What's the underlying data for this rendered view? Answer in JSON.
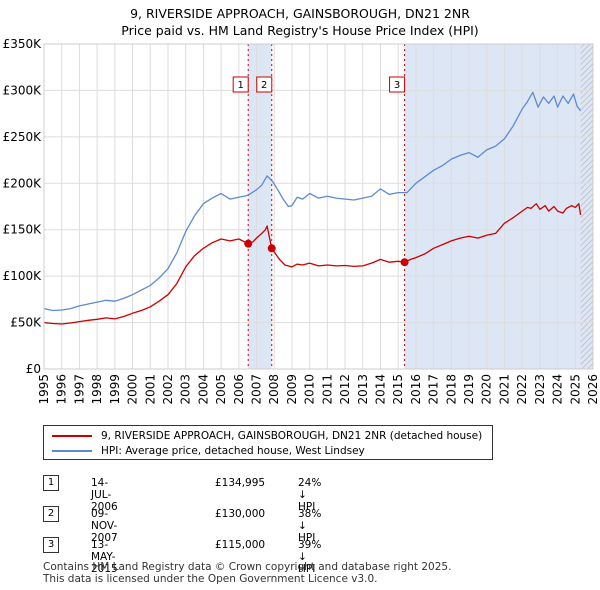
{
  "title": "9, RIVERSIDE APPROACH, GAINSBOROUGH, DN21 2NR",
  "subtitle": "Price paid vs. HM Land Registry's House Price Index (HPI)",
  "colors": {
    "red": "#cc0000",
    "blue": "#5b8bd0",
    "shade": "#dde6f5",
    "grid": "#dddddd",
    "marker_line": "#cc0000"
  },
  "chart_data": {
    "type": "line",
    "title": "Price paid vs. HM Land Registry's House Price Index (HPI)",
    "xlabel": "",
    "ylabel": "",
    "xlim": [
      1995,
      2026
    ],
    "ylim": [
      0,
      350000
    ],
    "x_ticks": [
      "1995",
      "1996",
      "1997",
      "1998",
      "1999",
      "2000",
      "2001",
      "2002",
      "2003",
      "2004",
      "2005",
      "2006",
      "2007",
      "2008",
      "2009",
      "2010",
      "2011",
      "2012",
      "2013",
      "2014",
      "2015",
      "2016",
      "2017",
      "2018",
      "2019",
      "2020",
      "2021",
      "2022",
      "2023",
      "2024",
      "2025",
      "2026"
    ],
    "y_ticks": [
      {
        "value": 0,
        "label": "£0"
      },
      {
        "value": 50000,
        "label": "£50K"
      },
      {
        "value": 100000,
        "label": "£100K"
      },
      {
        "value": 150000,
        "label": "£150K"
      },
      {
        "value": 200000,
        "label": "£200K"
      },
      {
        "value": 250000,
        "label": "£250K"
      },
      {
        "value": 300000,
        "label": "£300K"
      },
      {
        "value": 350000,
        "label": "£350K"
      }
    ],
    "shaded_ranges": [
      [
        2006.53,
        2007.86
      ],
      [
        2015.36,
        2026
      ]
    ],
    "hatch_from": 2025.3,
    "series": [
      {
        "name": "9, RIVERSIDE APPROACH, GAINSBOROUGH, DN21 2NR (detached house)",
        "color": "#cc0000",
        "x": [
          1995.0,
          1995.5,
          1996.0,
          1996.5,
          1997.0,
          1997.5,
          1998.0,
          1998.5,
          1999.0,
          1999.5,
          2000.0,
          2000.5,
          2001.0,
          2001.5,
          2002.0,
          2002.5,
          2003.0,
          2003.5,
          2004.0,
          2004.5,
          2005.0,
          2005.5,
          2006.0,
          2006.53,
          2006.8,
          2007.0,
          2007.3,
          2007.5,
          2007.6,
          2007.86,
          2008.0,
          2008.3,
          2008.6,
          2009.0,
          2009.3,
          2009.6,
          2010.0,
          2010.5,
          2011.0,
          2011.5,
          2012.0,
          2012.5,
          2013.0,
          2013.5,
          2014.0,
          2014.5,
          2015.0,
          2015.36,
          2015.7,
          2016.0,
          2016.5,
          2017.0,
          2017.5,
          2018.0,
          2018.5,
          2019.0,
          2019.5,
          2020.0,
          2020.5,
          2021.0,
          2021.5,
          2022.0,
          2022.3,
          2022.5,
          2022.8,
          2023.0,
          2023.3,
          2023.5,
          2023.8,
          2024.0,
          2024.3,
          2024.5,
          2024.8,
          2025.0,
          2025.2,
          2025.3
        ],
        "values": [
          50000,
          49000,
          48500,
          49500,
          51000,
          52500,
          53500,
          55000,
          54000,
          56500,
          60000,
          63000,
          67000,
          73000,
          80000,
          92000,
          110000,
          122000,
          130000,
          136000,
          140000,
          138000,
          140000,
          134995,
          137000,
          141000,
          146000,
          150000,
          154000,
          130000,
          126000,
          118000,
          112000,
          110000,
          113000,
          112000,
          114000,
          111000,
          112000,
          111000,
          111500,
          110500,
          111000,
          114000,
          118000,
          115000,
          116000,
          115000,
          118000,
          120000,
          124000,
          130000,
          134000,
          138000,
          141000,
          143000,
          141000,
          144000,
          146000,
          157000,
          163000,
          170000,
          174000,
          173000,
          178000,
          172000,
          176000,
          170000,
          175000,
          170000,
          168000,
          173000,
          176000,
          174000,
          178000,
          166000
        ],
        "marker_style": "line"
      },
      {
        "name": "HPI: Average price, detached house, West Lindsey",
        "color": "#5b8bd0",
        "x": [
          1995.0,
          1995.5,
          1996.0,
          1996.5,
          1997.0,
          1997.5,
          1998.0,
          1998.5,
          1999.0,
          1999.5,
          2000.0,
          2000.5,
          2001.0,
          2001.5,
          2002.0,
          2002.5,
          2003.0,
          2003.5,
          2004.0,
          2004.5,
          2005.0,
          2005.5,
          2006.0,
          2006.5,
          2007.0,
          2007.3,
          2007.6,
          2007.9,
          2008.2,
          2008.5,
          2008.8,
          2009.0,
          2009.3,
          2009.6,
          2010.0,
          2010.5,
          2011.0,
          2011.5,
          2012.0,
          2012.5,
          2013.0,
          2013.5,
          2014.0,
          2014.5,
          2015.0,
          2015.5,
          2016.0,
          2016.5,
          2017.0,
          2017.5,
          2018.0,
          2018.5,
          2019.0,
          2019.5,
          2020.0,
          2020.5,
          2021.0,
          2021.5,
          2022.0,
          2022.3,
          2022.6,
          2022.9,
          2023.2,
          2023.5,
          2023.8,
          2024.0,
          2024.3,
          2024.6,
          2024.9,
          2025.1,
          2025.3
        ],
        "values": [
          65000,
          63000,
          63500,
          65000,
          68000,
          70000,
          72000,
          74000,
          73000,
          76000,
          80000,
          85000,
          90000,
          98000,
          108000,
          125000,
          148000,
          165000,
          178000,
          184000,
          189000,
          183000,
          185000,
          187000,
          193000,
          198000,
          208000,
          202000,
          193000,
          183000,
          175000,
          176000,
          185000,
          183000,
          189000,
          184000,
          186000,
          184000,
          183000,
          182000,
          184000,
          186000,
          194000,
          188000,
          190000,
          190000,
          200000,
          207000,
          214000,
          219000,
          226000,
          230000,
          233000,
          228000,
          236000,
          240000,
          248000,
          262000,
          280000,
          288000,
          298000,
          282000,
          293000,
          286000,
          294000,
          282000,
          294000,
          286000,
          296000,
          283000,
          278000
        ],
        "marker_style": "line"
      }
    ],
    "events": [
      {
        "id": "1",
        "x": 2006.53,
        "value": 134995,
        "date": "14-JUL-2006",
        "price": "£134,995",
        "hpi": "24% ↓ HPI"
      },
      {
        "id": "2",
        "x": 2007.86,
        "value": 130000,
        "date": "09-NOV-2007",
        "price": "£130,000",
        "hpi": "38% ↓ HPI"
      },
      {
        "id": "3",
        "x": 2015.36,
        "value": 115000,
        "date": "13-MAY-2015",
        "price": "£115,000",
        "hpi": "39% ↓ HPI"
      }
    ]
  },
  "legend": {
    "red_label": "9, RIVERSIDE APPROACH, GAINSBOROUGH, DN21 2NR (detached house)",
    "blue_label": "HPI: Average price, detached house, West Lindsey"
  },
  "footer": {
    "line1": "Contains HM Land Registry data © Crown copyright and database right 2025.",
    "line2": "This data is licensed under the Open Government Licence v3.0."
  }
}
